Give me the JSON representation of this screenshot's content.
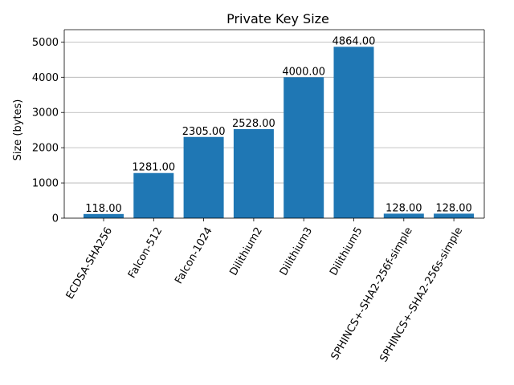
{
  "chart_data": {
    "type": "bar",
    "title": "Private Key Size",
    "xlabel": "",
    "ylabel": "Size (bytes)",
    "categories": [
      "ECDSA-SHA256",
      "Falcon-512",
      "Falcon-1024",
      "Dilithium2",
      "Dilithium3",
      "Dilithium5",
      "SPHINCS+-SHA2-256f-simple",
      "SPHINCS+-SHA2-256s-simple"
    ],
    "values": [
      118,
      1281,
      2305,
      2528,
      4000,
      4864,
      128,
      128
    ],
    "data_labels": [
      "118.00",
      "1281.00",
      "2305.00",
      "2528.00",
      "4000.00",
      "4864.00",
      "128.00",
      "128.00"
    ],
    "yticks": [
      0,
      1000,
      2000,
      3000,
      4000,
      5000
    ],
    "ylim": [
      0,
      5350
    ],
    "grid": "y",
    "bar_color": "#1f77b4"
  }
}
